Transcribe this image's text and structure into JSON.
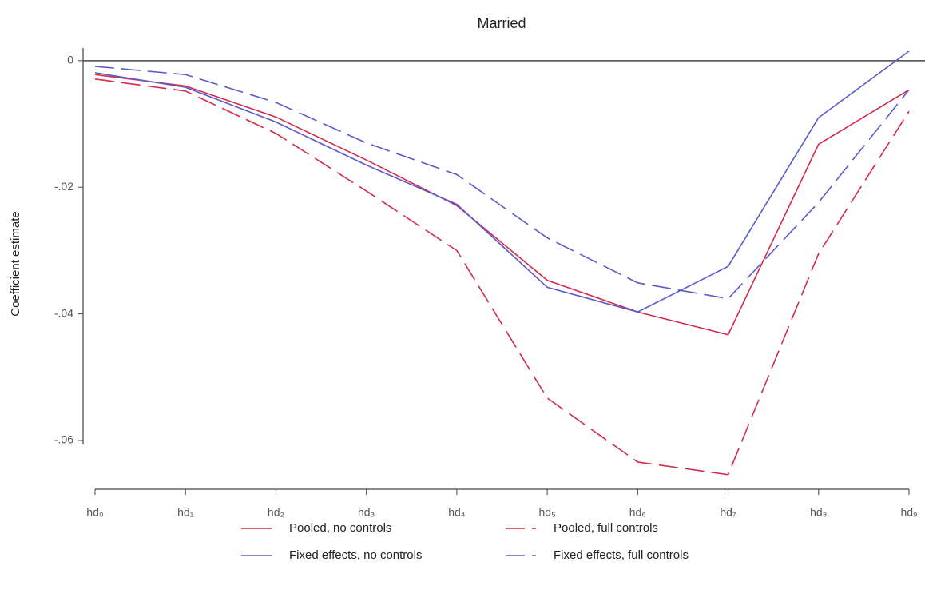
{
  "chart_data": {
    "type": "line",
    "title": "Married",
    "y_label": "Coefficient estimate",
    "categories": [
      "hd₀",
      "hd₁",
      "hd₂",
      "hd₃",
      "hd₄",
      "hd₅",
      "hd₆",
      "hd₇",
      "hd₈",
      "hd₉"
    ],
    "series": [
      {
        "name": "Pooled, no controls",
        "color": "#d42a4c",
        "line_style": "solid",
        "values": [
          -0.0022,
          -0.004,
          -0.0089,
          -0.0157,
          -0.0229,
          -0.0347,
          -0.0397,
          -0.0433,
          -0.0132,
          -0.0046
        ]
      },
      {
        "name": "Pooled, full controls",
        "color": "#d42a4c",
        "line_style": "dashed",
        "values": [
          -0.0029,
          -0.0048,
          -0.0115,
          -0.0206,
          -0.03,
          -0.0533,
          -0.0634,
          -0.0654,
          -0.0305,
          -0.008
        ]
      },
      {
        "name": "Fixed effects, no controls",
        "color": "#5a5acc",
        "line_style": "solid",
        "values": [
          -0.0019,
          -0.0042,
          -0.0097,
          -0.0165,
          -0.0227,
          -0.0358,
          -0.0397,
          -0.0325,
          -0.009,
          0.0015
        ]
      },
      {
        "name": "Fixed effects, full controls",
        "color": "#5a5acc",
        "line_style": "dashed",
        "values": [
          -0.0009,
          -0.0022,
          -0.0066,
          -0.013,
          -0.018,
          -0.028,
          -0.0351,
          -0.0376,
          -0.0224,
          -0.0046
        ]
      }
    ],
    "ylim": [
      -0.0677,
      0.002
    ],
    "yticks": [
      0,
      {
        "value": -0.02,
        "label": "-.02"
      },
      {
        "value": -0.04,
        "label": "-.04"
      },
      {
        "value": -0.06,
        "label": "-.06"
      }
    ]
  }
}
